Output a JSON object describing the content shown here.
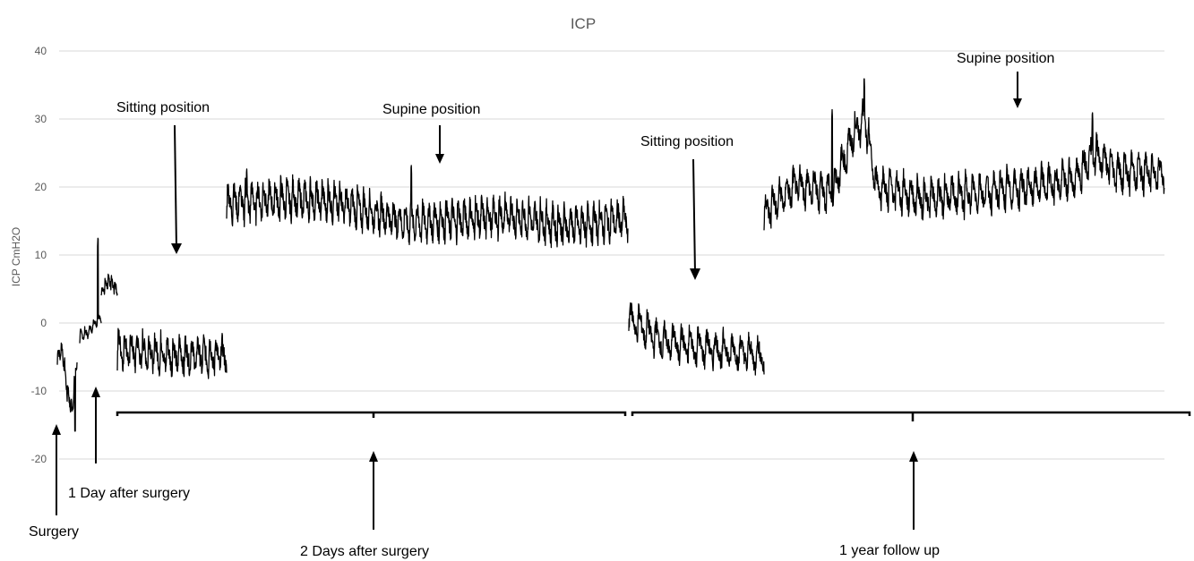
{
  "chart_data": {
    "type": "line",
    "title": "ICP",
    "ylabel": "ICP CmH2O",
    "xlabel": "",
    "ylim": [
      -20,
      40
    ],
    "yticks": [
      -20,
      -10,
      0,
      10,
      20,
      30,
      40
    ],
    "grid": true,
    "legend": "none",
    "colors": {
      "line": "#000000",
      "grid": "#d9d9d9",
      "text": "#595959"
    },
    "series": [
      {
        "segments": [
          {
            "period": "surgery",
            "levels": [
              [
                0,
                -5
              ],
              [
                0.25,
                -4
              ],
              [
                0.5,
                -10
              ],
              [
                0.75,
                -13
              ],
              [
                1,
                -5
              ]
            ],
            "amp": 2.5,
            "cycles": 6,
            "spikes": [
              [
                0.9,
                -14.7
              ]
            ]
          },
          {
            "period": "1 day after surgery",
            "levels": [
              [
                0,
                -2
              ],
              [
                0.4,
                -1.5
              ],
              [
                0.7,
                0
              ],
              [
                1,
                1
              ]
            ],
            "amp": 1.5,
            "cycles": 5,
            "spikes": [
              [
                0.85,
                13
              ]
            ]
          },
          {
            "period": "1 day after surgery",
            "levels": [
              [
                0,
                4.5
              ],
              [
                0.5,
                6
              ],
              [
                1,
                5
              ]
            ],
            "amp": 1.8,
            "cycles": 5
          },
          {
            "period": "2 days after surgery",
            "levels": [
              [
                0,
                -4
              ],
              [
                0.5,
                -5
              ],
              [
                1,
                -5
              ]
            ],
            "amp": 5,
            "cycles": 18
          },
          {
            "period": "2 days after surgery",
            "levels": [
              [
                0,
                17.5
              ],
              [
                0.15,
                18
              ],
              [
                0.28,
                17.5
              ],
              [
                0.45,
                14.5
              ],
              [
                0.7,
                15.5
              ],
              [
                0.85,
                14
              ],
              [
                1,
                15
              ]
            ],
            "amp": 5,
            "cycles": 68,
            "spikes": [
              [
                0.05,
                23
              ],
              [
                0.46,
                23.6
              ]
            ]
          },
          {
            "period": "1 year follow up",
            "levels": [
              [
                0,
                0.5
              ],
              [
                0.25,
                -3
              ],
              [
                0.6,
                -4
              ],
              [
                1,
                -5
              ]
            ],
            "amp": 4.5,
            "cycles": 16
          },
          {
            "period": "1 year follow up",
            "levels": [
              [
                0,
                16
              ],
              [
                0.08,
                20
              ],
              [
                0.17,
                19
              ],
              [
                0.22,
                27
              ],
              [
                0.25,
                30
              ],
              [
                0.28,
                20
              ],
              [
                0.4,
                18
              ],
              [
                0.55,
                19
              ],
              [
                0.7,
                20
              ],
              [
                0.78,
                21
              ],
              [
                0.82,
                25
              ],
              [
                0.88,
                22
              ],
              [
                1,
                22
              ]
            ],
            "amp": 5,
            "cycles": 58,
            "spikes": [
              [
                0.17,
                31.5
              ],
              [
                0.25,
                36.5
              ],
              [
                0.82,
                31.4
              ]
            ]
          }
        ]
      }
    ],
    "annotations": {
      "sitting_1": "Sitting position",
      "supine_1": "Supine position",
      "sitting_2": "Sitting position",
      "supine_2": "Supine position",
      "surgery": "Surgery",
      "day1": "1 Day after surgery",
      "day2": "2 Days after surgery",
      "year1": "1 year follow up"
    }
  }
}
